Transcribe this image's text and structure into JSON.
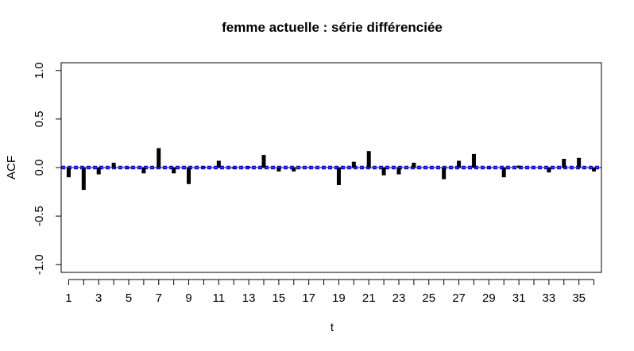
{
  "chart_data": {
    "type": "bar",
    "title": "femme actuelle : série différenciée",
    "xlabel": "t",
    "ylabel": "ACF",
    "xlim": [
      0.5,
      36.5
    ],
    "ylim": [
      -1.08,
      1.08
    ],
    "x_tick_values": [
      1,
      2,
      3,
      4,
      5,
      6,
      7,
      8,
      9,
      10,
      11,
      12,
      13,
      14,
      15,
      16,
      17,
      18,
      19,
      20,
      21,
      22,
      23,
      24,
      25,
      26,
      27,
      28,
      29,
      30,
      31,
      32,
      33,
      34,
      35,
      36
    ],
    "x_tick_labels": [
      "1",
      "3",
      "5",
      "7",
      "9",
      "11",
      "13",
      "15",
      "17",
      "19",
      "21",
      "23",
      "25",
      "27",
      "29",
      "31",
      "33",
      "35"
    ],
    "y_ticks": [
      -1.0,
      -0.5,
      0.0,
      0.5,
      1.0
    ],
    "y_tick_labels": [
      "-1.0",
      "-0.5",
      "0.0",
      "0.5",
      "1.0"
    ],
    "x": [
      1,
      2,
      3,
      4,
      5,
      6,
      7,
      8,
      9,
      10,
      11,
      12,
      13,
      14,
      15,
      16,
      17,
      18,
      19,
      20,
      21,
      22,
      23,
      24,
      25,
      26,
      27,
      28,
      29,
      30,
      31,
      32,
      33,
      34,
      35,
      36
    ],
    "values": [
      -0.1,
      -0.23,
      -0.07,
      0.05,
      -0.01,
      -0.06,
      0.2,
      -0.06,
      -0.17,
      0.01,
      0.07,
      -0.01,
      0.01,
      0.13,
      -0.04,
      -0.04,
      0.005,
      0.005,
      -0.18,
      0.06,
      0.17,
      -0.08,
      -0.07,
      0.05,
      0.005,
      -0.12,
      0.07,
      0.14,
      -0.01,
      -0.1,
      0.02,
      0.005,
      -0.05,
      0.09,
      0.1,
      -0.04
    ],
    "confidence_bound": 0.012,
    "colors": {
      "bars": "#000000",
      "confidence": "#0000ff",
      "zero_line": "#000000",
      "frame": "#000000"
    },
    "grid": false,
    "legend": "none"
  }
}
